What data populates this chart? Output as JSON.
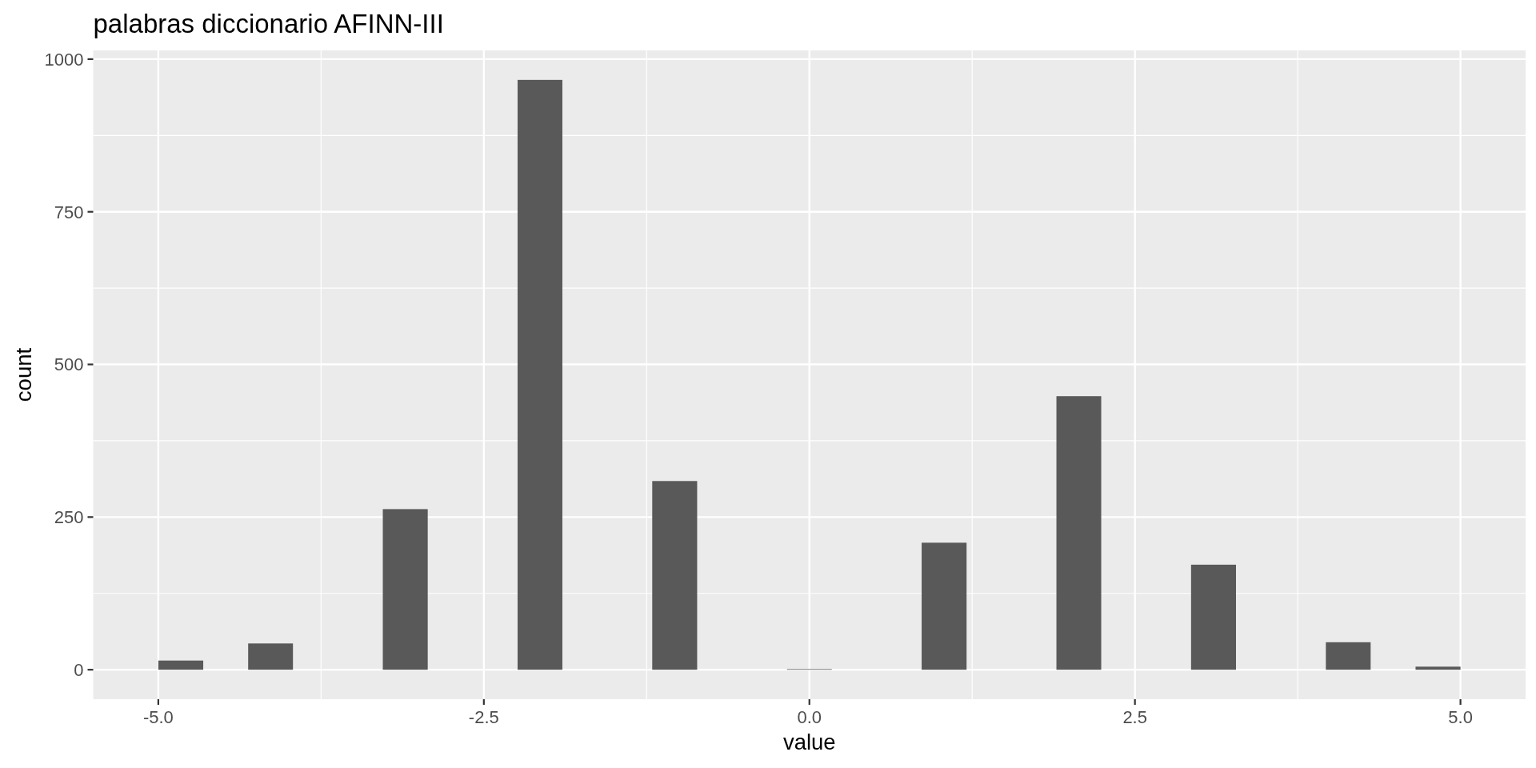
{
  "chart_data": {
    "type": "histogram",
    "title": "palabras diccionario AFINN-III",
    "xlabel": "value",
    "ylabel": "count",
    "bins": [
      -5,
      -4.655,
      -4.31,
      -3.966,
      -3.276,
      -2.931,
      -2.241,
      -1.897,
      -1.207,
      -0.862,
      -0.172,
      0.172,
      0.862,
      1.207,
      1.897,
      2.241,
      2.931,
      3.276,
      3.966,
      4.31,
      4.655,
      5
    ],
    "values": [
      15,
      0,
      43,
      0,
      263,
      0,
      966,
      0,
      309,
      0,
      1,
      0,
      208,
      0,
      448,
      0,
      172,
      0,
      45,
      0,
      5
    ],
    "color": "#595959",
    "xlim": [
      -5.5,
      5.5
    ],
    "ylim": [
      -48.3,
      1014.3
    ],
    "xticks": [
      {
        "value": -5,
        "label": "-5.0"
      },
      -2.5,
      {
        "value": 0,
        "label": "0.0"
      },
      2.5,
      {
        "value": 5,
        "label": "5.0"
      }
    ],
    "yticks": [
      0,
      250,
      500,
      750,
      1000
    ],
    "grid": true
  }
}
